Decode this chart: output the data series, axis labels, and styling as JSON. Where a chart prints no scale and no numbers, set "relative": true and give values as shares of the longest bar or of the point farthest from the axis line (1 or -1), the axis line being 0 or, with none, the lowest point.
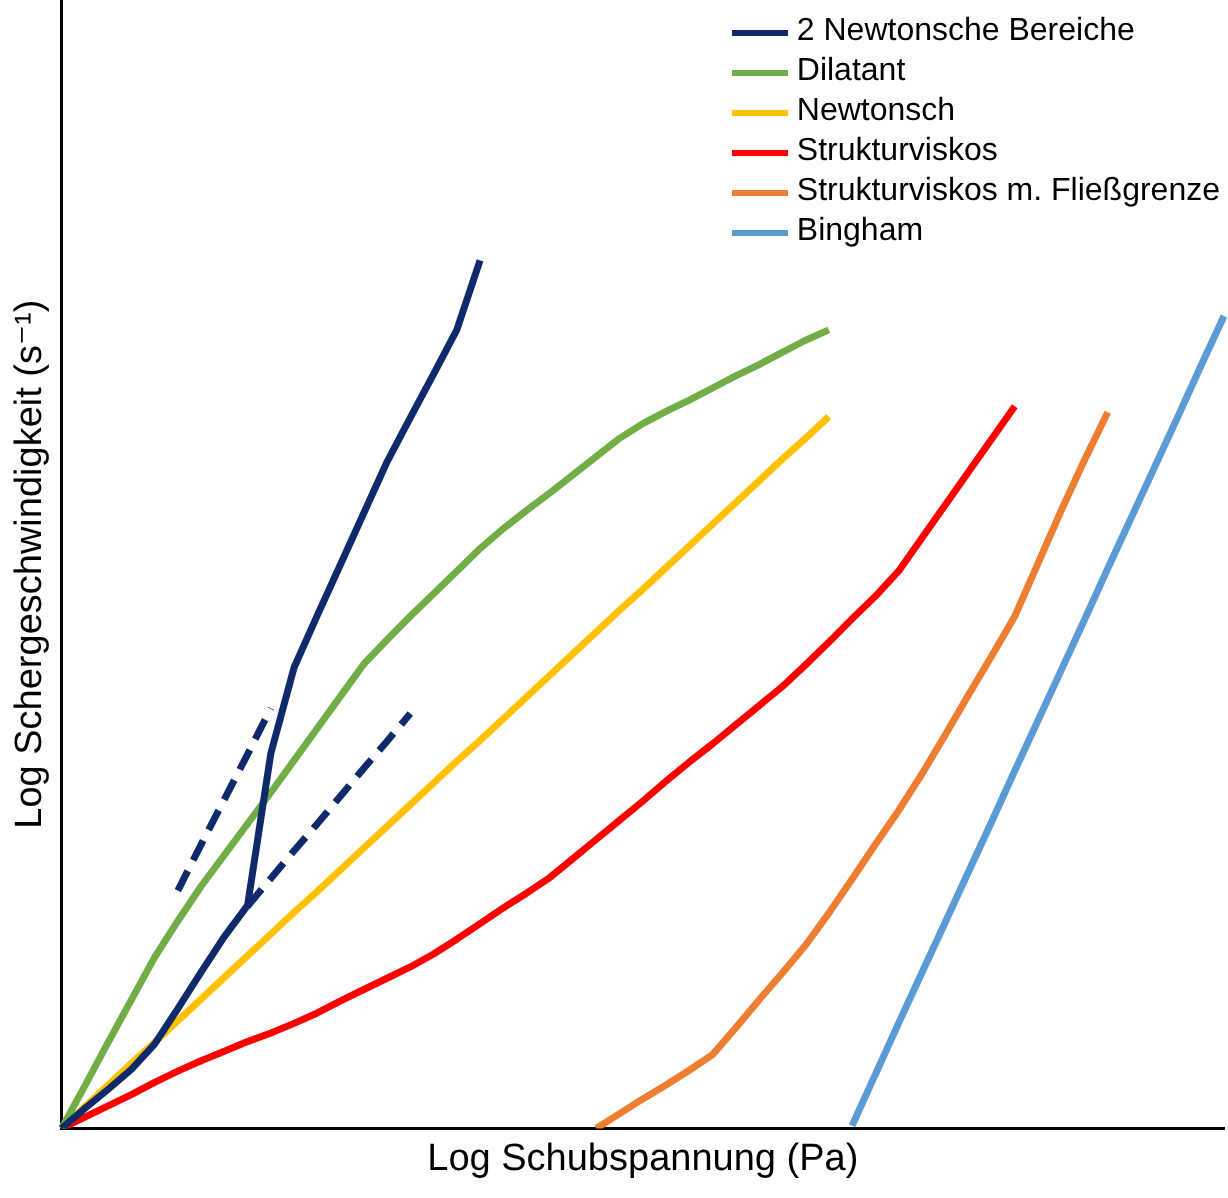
{
  "chart_data": {
    "type": "line",
    "relative": true,
    "xlabel": "Log Schubspannung (Pa)",
    "ylabel": "Log Schergeschwindigkeit (s⁻¹)",
    "legend": "top right",
    "marker": "none",
    "grid": false,
    "categories": [
      null,
      null,
      null,
      null,
      null,
      null,
      null,
      null,
      null,
      null,
      null,
      null,
      null,
      null,
      null,
      null,
      null,
      null,
      null,
      null,
      null,
      null,
      null,
      null,
      null,
      null,
      null,
      null,
      null,
      null,
      null,
      null,
      null,
      null,
      null,
      null,
      null,
      null,
      null,
      null,
      null,
      null,
      null,
      null,
      null,
      null,
      null,
      null,
      null,
      null,
      null
    ],
    "series": [
      {
        "name": "2 Newtonsche Bereiche",
        "color": "#0e2a6b",
        "values": [
          0,
          0.023,
          0.045,
          0.068,
          0.097,
          0.138,
          0.18,
          0.221,
          0.257,
          0.432,
          0.531,
          0.591,
          0.65,
          0.709,
          0.768,
          0.819,
          0.869,
          0.92,
          1.0,
          null,
          null,
          null,
          null,
          null,
          null,
          null,
          null,
          null,
          null,
          null,
          null,
          null,
          null,
          null,
          null,
          null,
          null,
          null,
          null,
          null,
          null,
          null,
          null,
          null,
          null,
          null,
          null,
          null,
          null,
          null,
          null
        ]
      },
      {
        "name": "Dilatant",
        "color": "#70ad47",
        "values": [
          0,
          0.049,
          0.099,
          0.148,
          0.197,
          0.239,
          0.279,
          0.315,
          0.351,
          0.387,
          0.424,
          0.461,
          0.498,
          0.535,
          0.563,
          0.59,
          0.616,
          0.642,
          0.668,
          0.691,
          0.712,
          0.732,
          0.753,
          0.774,
          0.795,
          0.812,
          0.826,
          0.839,
          0.853,
          0.867,
          0.88,
          0.894,
          0.908,
          0.92,
          null,
          null,
          null,
          null,
          null,
          null,
          null,
          null,
          null,
          null,
          null,
          null,
          null,
          null,
          null,
          null,
          null
        ]
      },
      {
        "name": "Newtonsch",
        "color": "#ffc000",
        "values": [
          0,
          0.025,
          0.05,
          0.075,
          0.099,
          0.124,
          0.149,
          0.174,
          0.199,
          0.224,
          0.249,
          0.273,
          0.298,
          0.323,
          0.348,
          0.373,
          0.398,
          0.423,
          0.447,
          0.472,
          0.497,
          0.522,
          0.547,
          0.572,
          0.597,
          0.621,
          0.646,
          0.671,
          0.696,
          0.721,
          0.746,
          0.771,
          0.795,
          0.82,
          null,
          null,
          null,
          null,
          null,
          null,
          null,
          null,
          null,
          null,
          null,
          null,
          null,
          null,
          null,
          null,
          null
        ]
      },
      {
        "name": "Strukturviskos",
        "color": "#ff0000",
        "values": [
          0,
          0.013,
          0.026,
          0.039,
          0.053,
          0.066,
          0.078,
          0.089,
          0.1,
          0.11,
          0.121,
          0.133,
          0.147,
          0.16,
          0.173,
          0.186,
          0.201,
          0.218,
          0.236,
          0.254,
          0.271,
          0.289,
          0.311,
          0.333,
          0.355,
          0.377,
          0.4,
          0.422,
          0.443,
          0.465,
          0.487,
          0.509,
          0.534,
          0.56,
          0.587,
          0.613,
          0.642,
          0.68,
          0.718,
          0.756,
          0.794,
          0.832,
          null,
          null,
          null,
          null,
          null,
          null,
          null,
          null,
          null
        ]
      },
      {
        "name": "Strukturviskos m. Fließgrenze",
        "color": "#ed7d31",
        "values": [
          null,
          null,
          null,
          null,
          null,
          null,
          null,
          null,
          null,
          null,
          null,
          null,
          null,
          null,
          null,
          null,
          null,
          null,
          null,
          null,
          null,
          null,
          null,
          0,
          0.017,
          0.034,
          0.05,
          0.067,
          0.085,
          0.116,
          0.148,
          0.179,
          0.211,
          0.248,
          0.287,
          0.327,
          0.366,
          0.408,
          0.453,
          0.499,
          0.544,
          0.59,
          0.651,
          0.712,
          0.77,
          0.825,
          null,
          null,
          null,
          null,
          null
        ]
      },
      {
        "name": "Bingham",
        "color": "#5b9bd5",
        "values": [
          null,
          null,
          null,
          null,
          null,
          null,
          null,
          null,
          null,
          null,
          null,
          null,
          null,
          null,
          null,
          null,
          null,
          null,
          null,
          null,
          null,
          null,
          null,
          null,
          null,
          null,
          null,
          null,
          null,
          null,
          null,
          null,
          null,
          null,
          0.003,
          0.062,
          0.121,
          0.179,
          0.237,
          0.295,
          0.353,
          0.412,
          0.47,
          0.528,
          0.586,
          0.645,
          0.703,
          0.761,
          0.819,
          0.878,
          0.936
        ]
      },
      {
        "color": "#0e2a6b",
        "line_style": "dashed",
        "values": [
          null,
          null,
          null,
          null,
          null,
          0.274,
          0.327,
          0.379,
          0.431,
          0.484,
          null,
          null,
          null,
          null,
          null,
          null,
          null,
          null,
          null,
          null,
          null,
          null,
          null,
          null,
          null,
          null,
          null,
          null,
          null,
          null,
          null,
          null,
          null,
          null,
          null,
          null,
          null,
          null,
          null,
          null,
          null,
          null,
          null,
          null,
          null,
          null,
          null,
          null,
          null,
          null,
          null
        ]
      },
      {
        "color": "#0e2a6b",
        "line_style": "dashed",
        "values": [
          null,
          null,
          null,
          null,
          null,
          null,
          null,
          null,
          0.256,
          0.288,
          0.32,
          0.351,
          0.383,
          0.415,
          0.446,
          0.478,
          null,
          null,
          null,
          null,
          null,
          null,
          null,
          null,
          null,
          null,
          null,
          null,
          null,
          null,
          null,
          null,
          null,
          null,
          null,
          null,
          null,
          null,
          null,
          null,
          null,
          null,
          null,
          null,
          null,
          null,
          null,
          null,
          null,
          null,
          null
        ]
      }
    ]
  }
}
